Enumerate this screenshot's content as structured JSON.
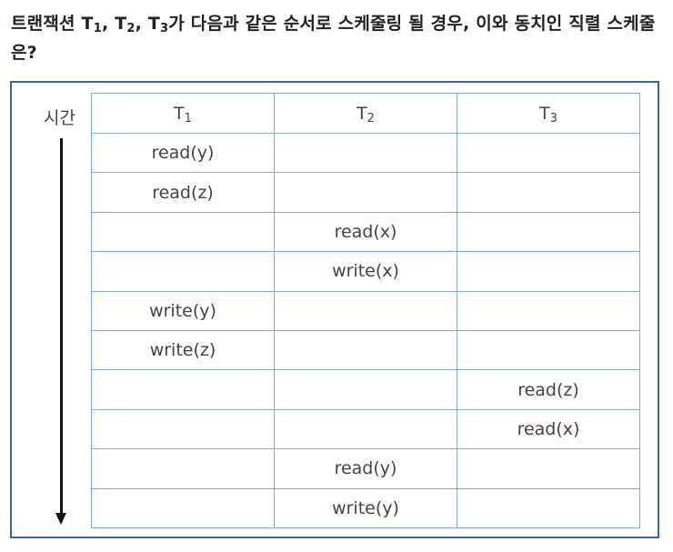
{
  "question": {
    "prefix": "트랜잭션 T",
    "s1": "1",
    "sep1": ", T",
    "s2": "2",
    "sep2": ", T",
    "s3": "3",
    "rest": "가 다음과 같은 순서로 스케줄링 될 경우, 이와 동치인 직렬 스케줄은?"
  },
  "time_label": "시간",
  "headers": [
    {
      "t": "T",
      "s": "1"
    },
    {
      "t": "T",
      "s": "2"
    },
    {
      "t": "T",
      "s": "3"
    }
  ],
  "rows": [
    [
      "read(y)",
      "",
      ""
    ],
    [
      "read(z)",
      "",
      ""
    ],
    [
      "",
      "read(x)",
      ""
    ],
    [
      "",
      "write(x)",
      ""
    ],
    [
      "write(y)",
      "",
      ""
    ],
    [
      "write(z)",
      "",
      ""
    ],
    [
      "",
      "",
      "read(z)"
    ],
    [
      "",
      "",
      "read(x)"
    ],
    [
      "",
      "read(y)",
      ""
    ],
    [
      "",
      "write(y)",
      ""
    ]
  ],
  "colors": {
    "box_border": "#3c64a0",
    "table_border": "#86a9da"
  }
}
